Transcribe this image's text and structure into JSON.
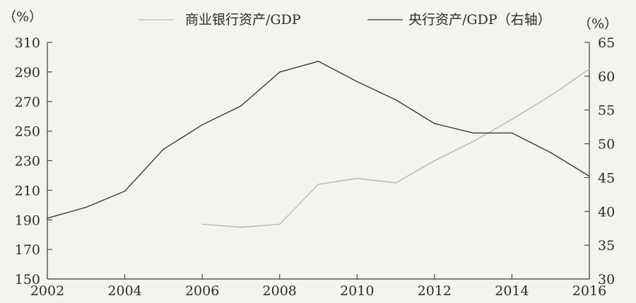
{
  "chart_data": {
    "type": "line",
    "x": [
      2002,
      2003,
      2004,
      2005,
      2006,
      2007,
      2008,
      2009,
      2010,
      2011,
      2012,
      2013,
      2014,
      2015,
      2016
    ],
    "x_ticks": [
      "2002",
      "2004",
      "2006",
      "2008",
      "2010",
      "2012",
      "2014",
      "2016"
    ],
    "y_left": {
      "label": "（%）",
      "ticks": [
        "310",
        "290",
        "270",
        "250",
        "230",
        "210",
        "190",
        "170",
        "150"
      ],
      "ylim": [
        150,
        310
      ]
    },
    "y_right": {
      "label": "（%）",
      "ticks": [
        "65",
        "60",
        "55",
        "50",
        "45",
        "40",
        "35",
        "30"
      ],
      "ylim": [
        30,
        65
      ]
    },
    "series": [
      {
        "name": "商业银行资产/GDP",
        "axis": "left",
        "color": "#bdbdb8",
        "x": [
          2006,
          2007,
          2008,
          2009,
          2010,
          2011,
          2012,
          2013,
          2014,
          2015,
          2016
        ],
        "values": [
          187,
          185,
          187,
          214,
          218,
          215,
          230,
          243,
          258,
          274,
          292
        ]
      },
      {
        "name": "央行资产/GDP（右轴）",
        "axis": "right",
        "color": "#3a3a3a",
        "x": [
          2002,
          2003,
          2004,
          2005,
          2006,
          2007,
          2008,
          2009,
          2010,
          2011,
          2012,
          2013,
          2014,
          2015,
          2016
        ],
        "values": [
          39.0,
          40.6,
          43.0,
          49.2,
          52.8,
          55.6,
          60.6,
          62.2,
          59.2,
          56.5,
          53.0,
          51.6,
          51.6,
          48.7,
          45.2
        ]
      }
    ],
    "legend": "top"
  }
}
